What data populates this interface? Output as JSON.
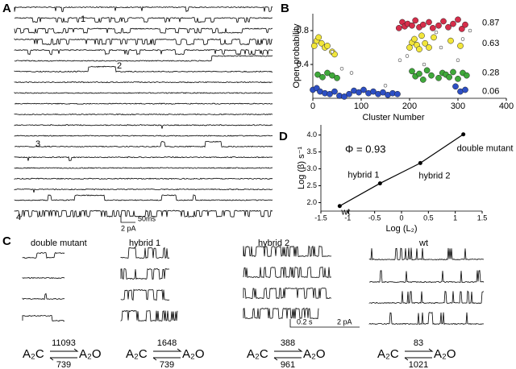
{
  "panel_a": {
    "label": "A",
    "trace_labels": [
      "1",
      "2",
      "3",
      "4"
    ],
    "scale_time": "50ms",
    "scale_current": "2 pA"
  },
  "chart_data": [
    {
      "type": "scatter",
      "panel_label": "B",
      "ylabel": "Open probability",
      "xlabel": "Cluster Number",
      "xlim": [
        0,
        400
      ],
      "xticks": [
        0,
        100,
        200,
        300,
        400
      ],
      "ylim": [
        0,
        1.0
      ],
      "yticks": [
        0.4,
        0.8
      ],
      "level_labels": [
        0.87,
        0.63,
        0.28,
        0.06
      ],
      "series": [
        {
          "color": "#d62d4a",
          "x": [
            178,
            185,
            190,
            196,
            205,
            212,
            220,
            228,
            240,
            248,
            260,
            270,
            280,
            290,
            300,
            308,
            315
          ],
          "values": [
            0.83,
            0.9,
            0.85,
            0.88,
            0.86,
            0.92,
            0.84,
            0.87,
            0.9,
            0.83,
            0.86,
            0.91,
            0.84,
            0.88,
            0.93,
            0.82,
            0.87
          ]
        },
        {
          "color": "#f2e63a",
          "x": [
            3,
            8,
            12,
            18,
            25,
            30,
            40,
            45,
            200,
            205,
            210,
            215,
            220,
            225,
            232,
            240,
            250,
            285,
            305
          ],
          "values": [
            0.62,
            0.68,
            0.72,
            0.65,
            0.6,
            0.62,
            0.55,
            0.52,
            0.6,
            0.66,
            0.7,
            0.63,
            0.58,
            0.74,
            0.65,
            0.6,
            0.72,
            0.68,
            0.62
          ]
        },
        {
          "color": "#3fa83a",
          "x": [
            10,
            20,
            30,
            40,
            50,
            205,
            212,
            220,
            228,
            236,
            245,
            260,
            268,
            275,
            282,
            290,
            300,
            310,
            318
          ],
          "values": [
            0.28,
            0.25,
            0.3,
            0.27,
            0.24,
            0.32,
            0.26,
            0.29,
            0.22,
            0.33,
            0.27,
            0.24,
            0.3,
            0.28,
            0.25,
            0.31,
            0.23,
            0.3,
            0.27
          ]
        },
        {
          "color": "#2d4fc4",
          "x": [
            0,
            8,
            15,
            25,
            35,
            45,
            55,
            65,
            75,
            85,
            95,
            105,
            115,
            125,
            135,
            145,
            155,
            165,
            175,
            295,
            305,
            315
          ],
          "values": [
            0.1,
            0.12,
            0.08,
            0.06,
            0.05,
            0.08,
            0.03,
            0.02,
            0.05,
            0.09,
            0.07,
            0.1,
            0.06,
            0.08,
            0.05,
            0.07,
            0.04,
            0.06,
            0.05,
            0.14,
            0.08,
            0.1
          ]
        },
        {
          "color": "#ffffff",
          "x": [
            40,
            60,
            80,
            150,
            180,
            195,
            230,
            255,
            265,
            300,
            310,
            325
          ],
          "values": [
            0.55,
            0.35,
            0.3,
            0.15,
            0.45,
            0.5,
            0.4,
            0.78,
            0.6,
            0.45,
            0.7,
            0.8
          ]
        }
      ]
    },
    {
      "type": "line",
      "panel_label": "D",
      "ylabel": "Log (β) s⁻¹",
      "xlabel": "Log (L₂)",
      "annotation": "Φ = 0.93",
      "xlim": [
        -1.5,
        1.5
      ],
      "xticks": [
        -1.5,
        -1,
        -0.5,
        0,
        0.5,
        1,
        1.5
      ],
      "ylim": [
        1.75,
        4.3
      ],
      "yticks": [
        {
          "value": 2,
          "label": "2.0"
        },
        {
          "value": 2.5,
          "label": "2.5"
        },
        {
          "value": 3,
          "label": "3.0"
        },
        {
          "value": 3.5,
          "label": "3.5"
        },
        {
          "value": 4,
          "label": "4.0"
        }
      ],
      "x": [
        -1.15,
        -0.4,
        0.35,
        1.15
      ],
      "values": [
        1.9,
        2.57,
        3.17,
        4.02
      ],
      "point_labels": [
        "wt",
        "hybrid 1",
        "hybrid 2",
        "double mutant"
      ],
      "color": "#000000"
    }
  ],
  "panel_c": {
    "label": "C",
    "state_closed": "A₂C",
    "state_open": "A₂O",
    "scale_time": "0.2 s",
    "scale_current": "2 pA",
    "groups": [
      {
        "label": "double mutant",
        "forward": 11093,
        "backward": 739
      },
      {
        "label": "hybrid 1",
        "forward": 1648,
        "backward": 739
      },
      {
        "label": "hybrid 2",
        "forward": 388,
        "backward": 961
      },
      {
        "label": "wt",
        "forward": 83,
        "backward": 1021
      }
    ]
  }
}
